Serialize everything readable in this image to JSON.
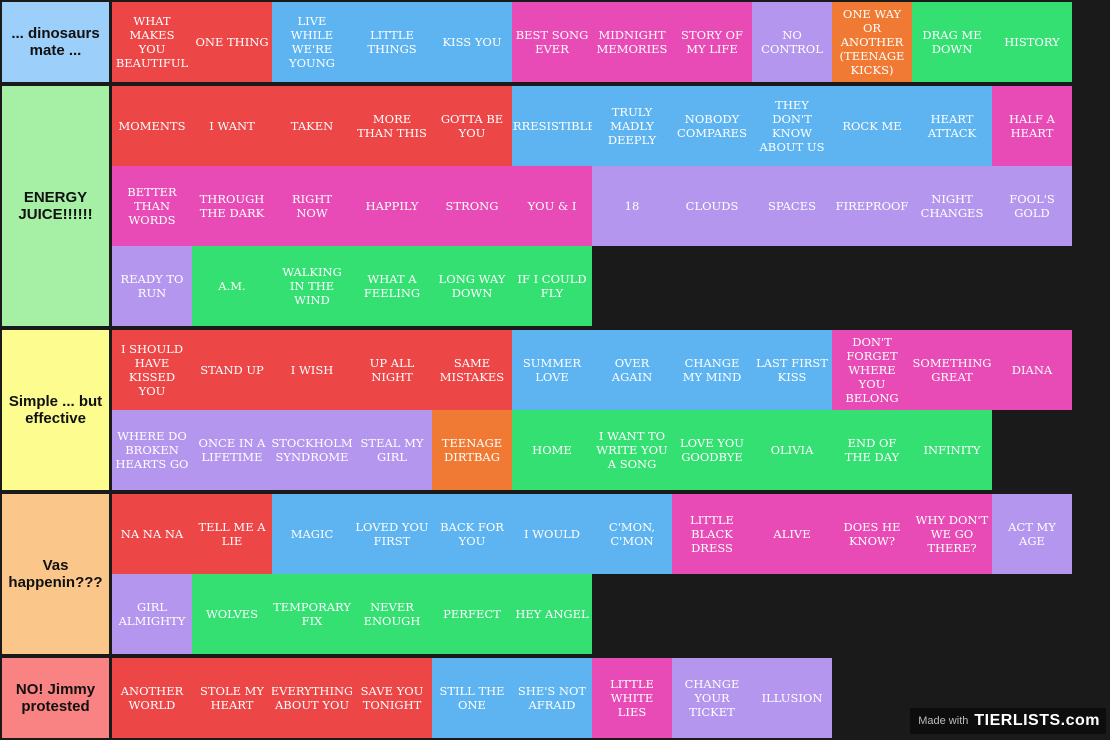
{
  "colors": {
    "red": "#ec4646",
    "blue": "#5db4f0",
    "pink": "#e84bb5",
    "purple": "#b596ee",
    "orange": "#f07a33",
    "green": "#33e071"
  },
  "tiers": [
    {
      "label": "... dinosaurs mate ...",
      "label_color": "#9ccffa",
      "rows": 1,
      "items": [
        {
          "text": "What makes you beautiful",
          "color": "red"
        },
        {
          "text": "One thing",
          "color": "red"
        },
        {
          "text": "Live while we're young",
          "color": "blue"
        },
        {
          "text": "Little things",
          "color": "blue"
        },
        {
          "text": "Kiss you",
          "color": "blue"
        },
        {
          "text": "Best song ever",
          "color": "pink"
        },
        {
          "text": "Midnight memories",
          "color": "pink"
        },
        {
          "text": "Story of my life",
          "color": "pink"
        },
        {
          "text": "No control",
          "color": "purple"
        },
        {
          "text": "One way or another (teenage kicks)",
          "color": "orange"
        },
        {
          "text": "Drag me down",
          "color": "green"
        },
        {
          "text": "History",
          "color": "green"
        }
      ]
    },
    {
      "label": "ENERGY JUICE!!!!!!",
      "label_color": "#a5f0a5",
      "rows": 3,
      "items": [
        {
          "text": "Moments",
          "color": "red"
        },
        {
          "text": "I want",
          "color": "red"
        },
        {
          "text": "Taken",
          "color": "red"
        },
        {
          "text": "More than this",
          "color": "red"
        },
        {
          "text": "Gotta be you",
          "color": "red"
        },
        {
          "text": "Irresistible",
          "color": "blue"
        },
        {
          "text": "Truly madly deeply",
          "color": "blue"
        },
        {
          "text": "Nobody compares",
          "color": "blue"
        },
        {
          "text": "They don't know about us",
          "color": "blue"
        },
        {
          "text": "Rock me",
          "color": "blue"
        },
        {
          "text": "Heart attack",
          "color": "blue"
        },
        {
          "text": "Half a heart",
          "color": "pink"
        },
        {
          "text": "Better than words",
          "color": "pink"
        },
        {
          "text": "Through the dark",
          "color": "pink"
        },
        {
          "text": "Right now",
          "color": "pink"
        },
        {
          "text": "Happily",
          "color": "pink"
        },
        {
          "text": "Strong",
          "color": "pink"
        },
        {
          "text": "You & I",
          "color": "pink"
        },
        {
          "text": "18",
          "color": "purple"
        },
        {
          "text": "Clouds",
          "color": "purple"
        },
        {
          "text": "Spaces",
          "color": "purple"
        },
        {
          "text": "Fireproof",
          "color": "purple"
        },
        {
          "text": "Night changes",
          "color": "purple"
        },
        {
          "text": "Fool's gold",
          "color": "purple"
        },
        {
          "text": "Ready to run",
          "color": "purple"
        },
        {
          "text": "A.M.",
          "color": "green"
        },
        {
          "text": "Walking in the wind",
          "color": "green"
        },
        {
          "text": "What a feeling",
          "color": "green"
        },
        {
          "text": "Long way down",
          "color": "green"
        },
        {
          "text": "If I could fly",
          "color": "green"
        }
      ]
    },
    {
      "label": "Simple ... but effective",
      "label_color": "#fcfc8f",
      "rows": 2,
      "items": [
        {
          "text": "I should have kissed you",
          "color": "red"
        },
        {
          "text": "Stand up",
          "color": "red"
        },
        {
          "text": "I wish",
          "color": "red"
        },
        {
          "text": "Up all night",
          "color": "red"
        },
        {
          "text": "Same mistakes",
          "color": "red"
        },
        {
          "text": "Summer love",
          "color": "blue"
        },
        {
          "text": "Over again",
          "color": "blue"
        },
        {
          "text": "Change my mind",
          "color": "blue"
        },
        {
          "text": "Last first kiss",
          "color": "blue"
        },
        {
          "text": "Don't forget where you belong",
          "color": "pink"
        },
        {
          "text": "Something great",
          "color": "pink"
        },
        {
          "text": "Diana",
          "color": "pink"
        },
        {
          "text": "Where do broken hearts go",
          "color": "purple"
        },
        {
          "text": "Once in a lifetime",
          "color": "purple"
        },
        {
          "text": "Stockholm syndrome",
          "color": "purple"
        },
        {
          "text": "Steal my girl",
          "color": "purple"
        },
        {
          "text": "Teenage dirtbag",
          "color": "orange"
        },
        {
          "text": "Home",
          "color": "green"
        },
        {
          "text": "I want to write you a song",
          "color": "green"
        },
        {
          "text": "Love you goodbye",
          "color": "green"
        },
        {
          "text": "Olivia",
          "color": "green"
        },
        {
          "text": "End of the day",
          "color": "green"
        },
        {
          "text": "Infinity",
          "color": "green"
        }
      ]
    },
    {
      "label": "Vas happenin???",
      "label_color": "#fbc68a",
      "rows": 2,
      "items": [
        {
          "text": "Na na na",
          "color": "red"
        },
        {
          "text": "Tell me a lie",
          "color": "red"
        },
        {
          "text": "Magic",
          "color": "blue"
        },
        {
          "text": "Loved you first",
          "color": "blue"
        },
        {
          "text": "Back for you",
          "color": "blue"
        },
        {
          "text": "I would",
          "color": "blue"
        },
        {
          "text": "C'mon, c'mon",
          "color": "blue"
        },
        {
          "text": "Little black dress",
          "color": "pink"
        },
        {
          "text": "Alive",
          "color": "pink"
        },
        {
          "text": "Does he know?",
          "color": "pink"
        },
        {
          "text": "Why don't we go there?",
          "color": "pink"
        },
        {
          "text": "Act my age",
          "color": "purple"
        },
        {
          "text": "Girl almighty",
          "color": "purple"
        },
        {
          "text": "Wolves",
          "color": "green"
        },
        {
          "text": "Temporary fix",
          "color": "green"
        },
        {
          "text": "Never enough",
          "color": "green"
        },
        {
          "text": "Perfect",
          "color": "green"
        },
        {
          "text": "Hey angel",
          "color": "green"
        }
      ]
    },
    {
      "label": "NO! Jimmy protested",
      "label_color": "#f98282",
      "rows": 1,
      "items": [
        {
          "text": "Another world",
          "color": "red"
        },
        {
          "text": "Stole my heart",
          "color": "red"
        },
        {
          "text": "Everything about you",
          "color": "red"
        },
        {
          "text": "Save you tonight",
          "color": "red"
        },
        {
          "text": "Still the one",
          "color": "blue"
        },
        {
          "text": "She's not afraid",
          "color": "blue"
        },
        {
          "text": "Little white lies",
          "color": "pink"
        },
        {
          "text": "Change your ticket",
          "color": "purple"
        },
        {
          "text": "Illusion",
          "color": "purple"
        }
      ]
    }
  ],
  "watermark": {
    "made_with": "Made with",
    "brand": "TIERLISTS.com"
  }
}
